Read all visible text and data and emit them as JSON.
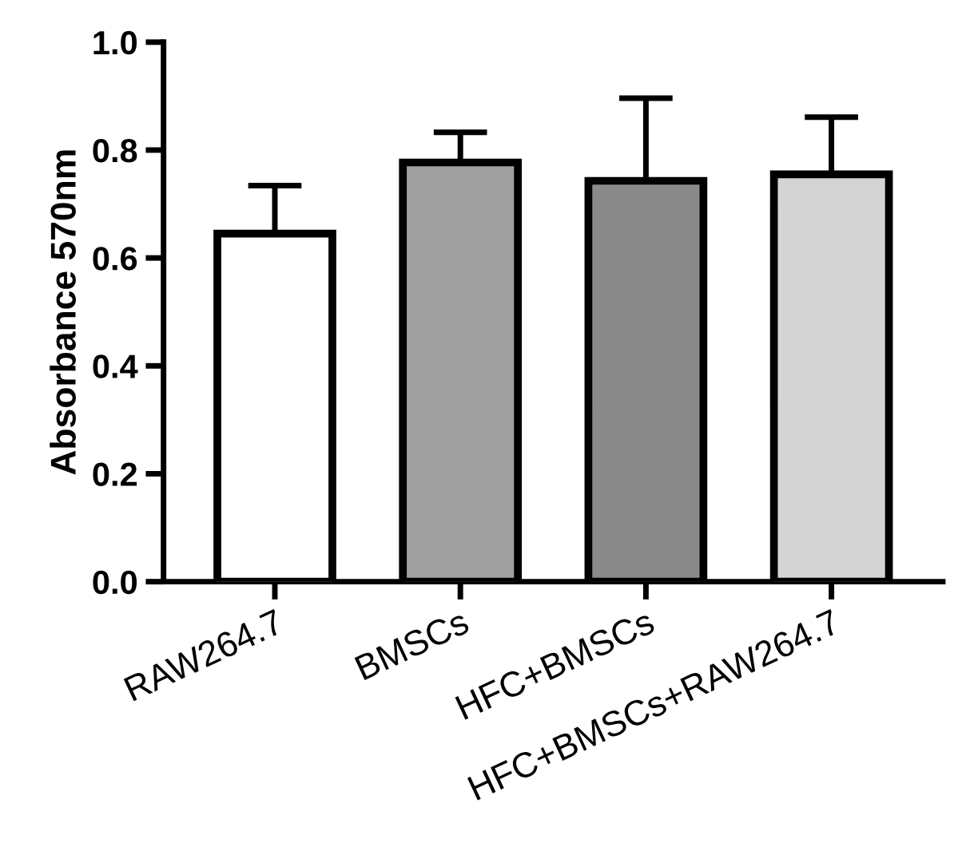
{
  "chart_data": {
    "type": "bar",
    "ylabel": "Absorbance 570nm",
    "categories": [
      "RAW264.7",
      "BMSCs",
      "HFC+BMSCs",
      "HFC+BMSCs+RAW264.7"
    ],
    "values": [
      0.645,
      0.777,
      0.743,
      0.755
    ],
    "errors": [
      [
        0.645,
        0.734
      ],
      [
        0.777,
        0.833
      ],
      [
        0.743,
        0.896
      ],
      [
        0.755,
        0.861
      ]
    ],
    "colors": [
      "#ffffff",
      "#a0a0a0",
      "#8a8a8a",
      "#d4d4d4"
    ],
    "ylim": [
      0,
      1.0
    ],
    "yticks": [
      {
        "value": 0,
        "label": "0.0"
      },
      {
        "value": 0.2,
        "label": "0.2"
      },
      {
        "value": 0.4,
        "label": "0.4"
      },
      {
        "value": 0.6,
        "label": "0.6"
      },
      {
        "value": 0.8,
        "label": "0.8"
      },
      {
        "value": 1.0,
        "label": "1.0"
      }
    ],
    "grid": false
  }
}
